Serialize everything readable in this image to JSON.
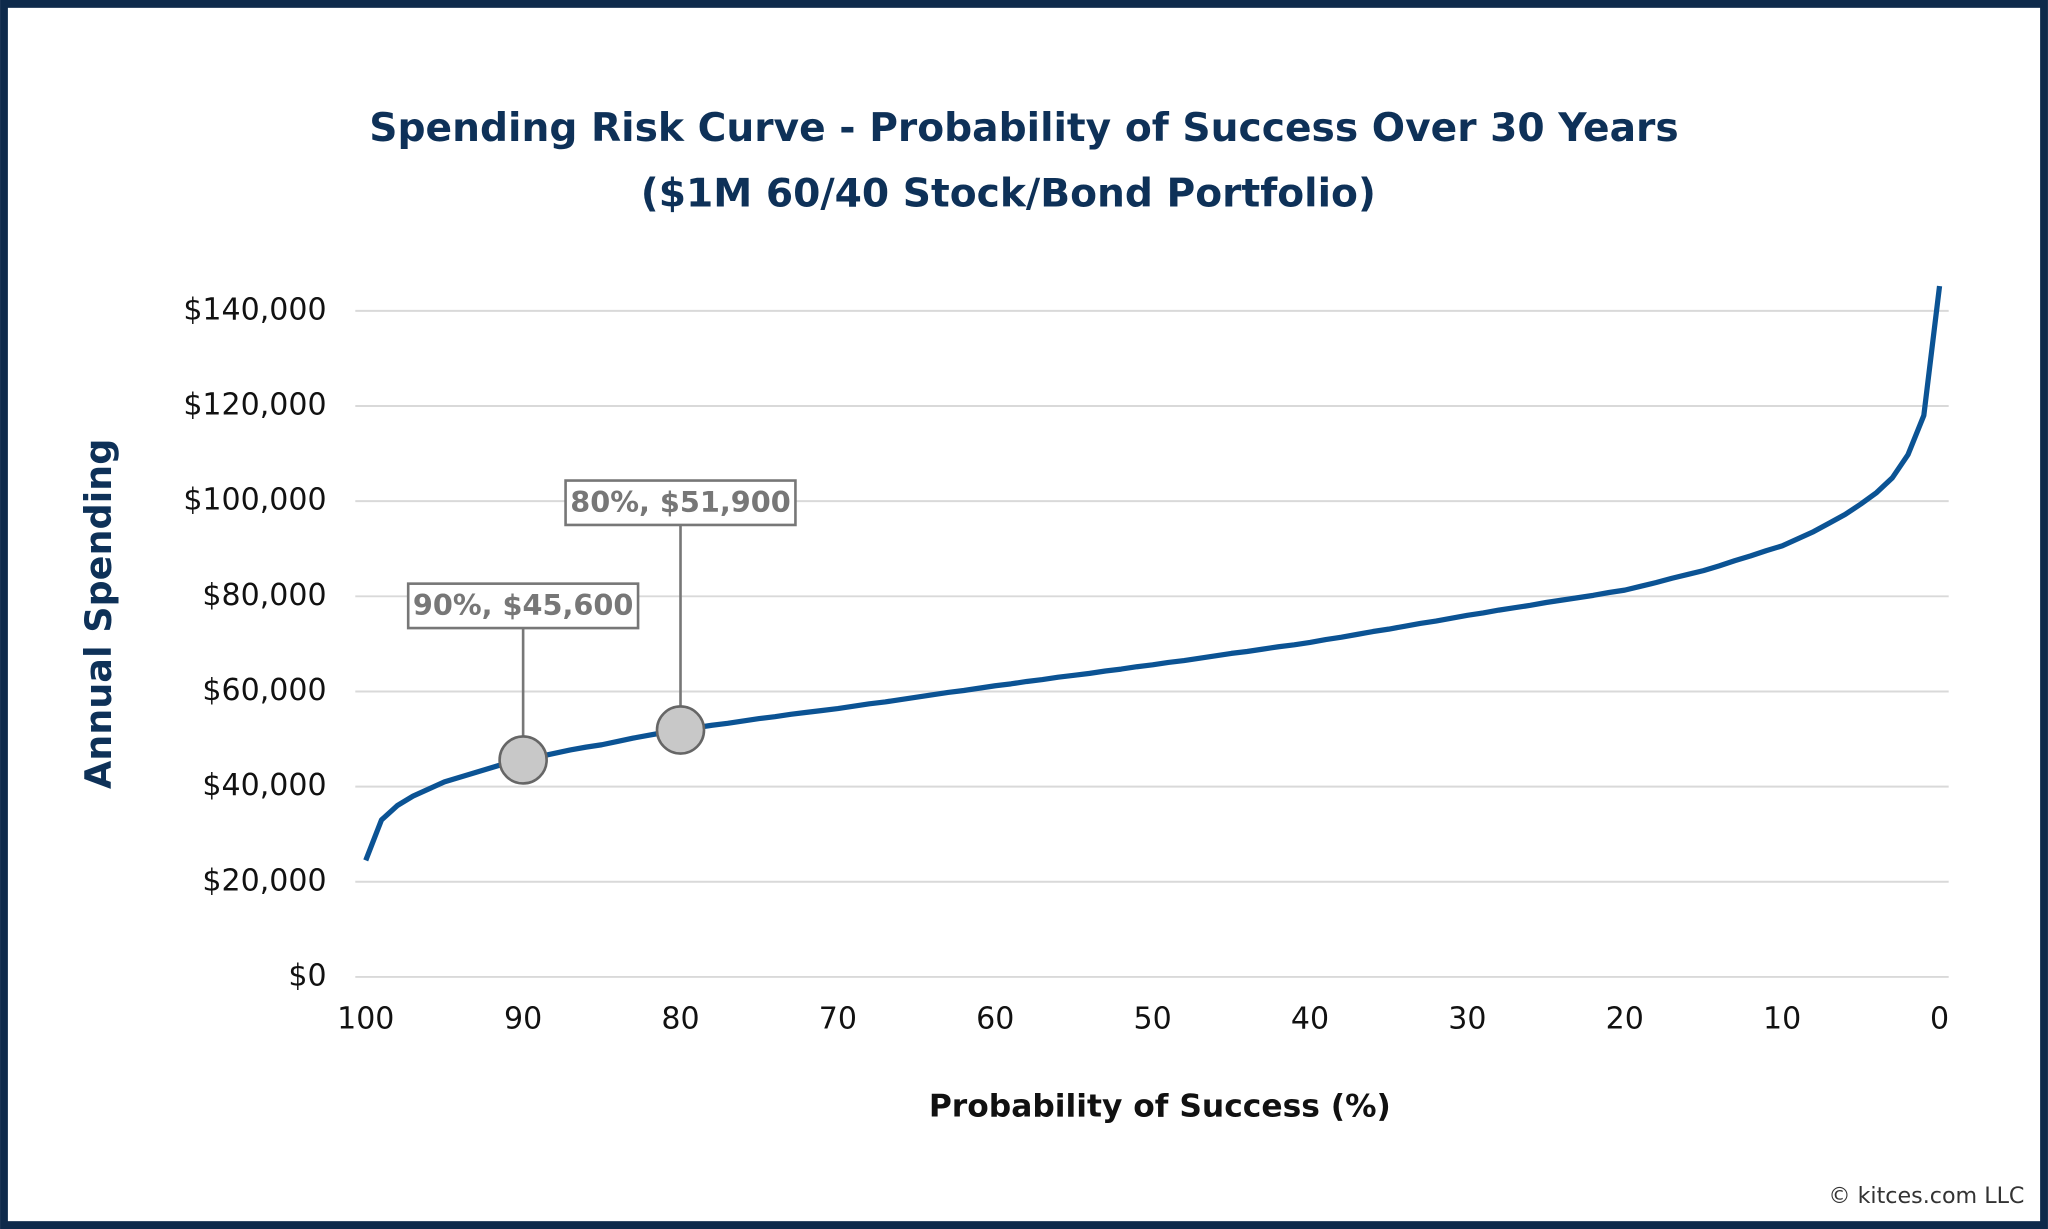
{
  "chart_data": {
    "type": "line",
    "title": "Spending Risk Curve - Probability of Success Over 30 Years",
    "subtitle": "($1M 60/40 Stock/Bond Portfolio)",
    "x_label": "Probability of Success (%)",
    "y_label": "Annual Spending",
    "footer": "© kitces.com LLC",
    "x": [
      100,
      99,
      98,
      97,
      96,
      95,
      94,
      93,
      92,
      91,
      90,
      89,
      88,
      87,
      86,
      85,
      84,
      83,
      82,
      81,
      80,
      79,
      78,
      77,
      76,
      75,
      74,
      73,
      72,
      71,
      70,
      69,
      68,
      67,
      66,
      65,
      64,
      63,
      62,
      61,
      60,
      59,
      58,
      57,
      56,
      55,
      54,
      53,
      52,
      51,
      50,
      49,
      48,
      47,
      46,
      45,
      44,
      43,
      42,
      41,
      40,
      39,
      38,
      37,
      36,
      35,
      34,
      33,
      32,
      31,
      30,
      29,
      28,
      27,
      26,
      25,
      24,
      23,
      22,
      21,
      20,
      19,
      18,
      17,
      16,
      15,
      14,
      13,
      12,
      11,
      10,
      9,
      8,
      7,
      6,
      5,
      4,
      3,
      2,
      1,
      0
    ],
    "series": [
      {
        "name": "Annual Spending",
        "color": "#0b5394",
        "values": [
          24500,
          33000,
          36000,
          38000,
          39500,
          41000,
          42000,
          43000,
          44000,
          45000,
          45600,
          46300,
          47000,
          47700,
          48300,
          48800,
          49500,
          50200,
          50800,
          51400,
          51900,
          52400,
          52900,
          53300,
          53800,
          54300,
          54700,
          55200,
          55600,
          56000,
          56400,
          56900,
          57400,
          57800,
          58300,
          58800,
          59300,
          59800,
          60200,
          60700,
          61200,
          61600,
          62100,
          62500,
          63000,
          63400,
          63800,
          64300,
          64700,
          65200,
          65600,
          66100,
          66500,
          67000,
          67500,
          68000,
          68400,
          68900,
          69400,
          69800,
          70300,
          70900,
          71400,
          72000,
          72600,
          73100,
          73700,
          74300,
          74800,
          75400,
          76000,
          76500,
          77100,
          77600,
          78100,
          78700,
          79200,
          79700,
          80200,
          80800,
          81300,
          82100,
          82900,
          83800,
          84600,
          85400,
          86400,
          87500,
          88500,
          89600,
          90600,
          92100,
          93600,
          95400,
          97200,
          99400,
          101800,
          104900,
          109800,
          118000,
          145200
        ]
      }
    ],
    "xlim": [
      100,
      0
    ],
    "xticks": [
      100,
      90,
      80,
      70,
      60,
      50,
      40,
      30,
      20,
      10,
      0
    ],
    "ylim": [
      0,
      140000
    ],
    "yticks": [
      {
        "value": 0,
        "label": "$0"
      },
      {
        "value": 20000,
        "label": "$20,000"
      },
      {
        "value": 40000,
        "label": "$40,000"
      },
      {
        "value": 60000,
        "label": "$60,000"
      },
      {
        "value": 80000,
        "label": "$80,000"
      },
      {
        "value": 100000,
        "label": "$100,000"
      },
      {
        "value": 120000,
        "label": "$120,000"
      },
      {
        "value": 140000,
        "label": "$140,000"
      }
    ],
    "grid": true,
    "annotations": [
      {
        "x": 90,
        "y": 45600,
        "text": "90%, $45,600"
      },
      {
        "x": 80,
        "y": 51900,
        "text": "80%, $51,900"
      }
    ]
  }
}
